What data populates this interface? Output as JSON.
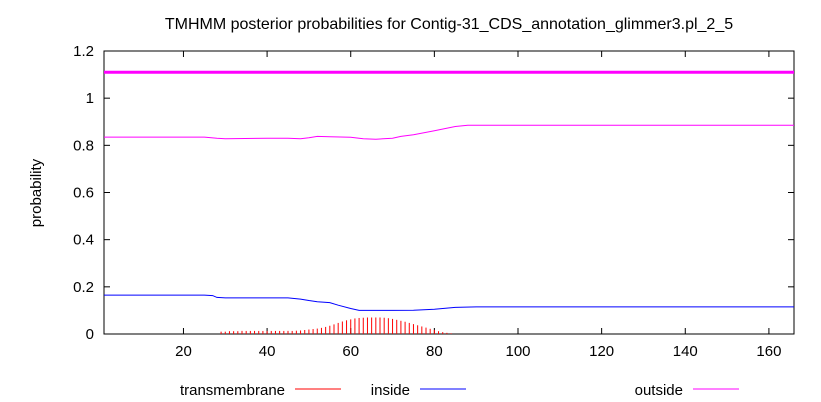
{
  "chart_data": {
    "type": "line",
    "title": "TMHMM posterior probabilities for Contig-31_CDS_annotation_glimmer3.pl_2_5",
    "ylabel": "probability",
    "xlabel": "",
    "xlim": [
      1,
      166
    ],
    "ylim": [
      0,
      1.2
    ],
    "x_ticks": [
      20,
      40,
      60,
      80,
      100,
      120,
      140,
      160
    ],
    "y_ticks": [
      0,
      0.2,
      0.4,
      0.6,
      0.8,
      1,
      1.2
    ],
    "y_tick_labels": [
      "0",
      "0.2",
      "0.4",
      "0.6",
      "0.8",
      "1",
      "1.2"
    ],
    "grid": false,
    "legend_position": "bottom",
    "reference_line": {
      "y": 1.11,
      "color": "#ff00ff"
    },
    "series": [
      {
        "name": "transmembrane",
        "color": "#ff0000",
        "style": "impulses",
        "x": [
          29,
          30,
          31,
          32,
          33,
          34,
          35,
          36,
          37,
          38,
          39,
          40,
          41,
          42,
          43,
          44,
          45,
          46,
          47,
          48,
          49,
          50,
          51,
          52,
          53,
          54,
          55,
          56,
          57,
          58,
          59,
          60,
          61,
          62,
          63,
          64,
          65,
          66,
          67,
          68,
          69,
          70,
          71,
          72,
          73,
          74,
          75,
          76,
          77,
          78,
          79,
          80,
          81,
          82,
          83,
          84
        ],
        "y": [
          0.01,
          0.01,
          0.012,
          0.012,
          0.012,
          0.013,
          0.013,
          0.013,
          0.013,
          0.013,
          0.013,
          0.013,
          0.013,
          0.013,
          0.013,
          0.013,
          0.013,
          0.013,
          0.014,
          0.015,
          0.017,
          0.019,
          0.021,
          0.023,
          0.026,
          0.03,
          0.035,
          0.041,
          0.047,
          0.053,
          0.058,
          0.062,
          0.066,
          0.068,
          0.069,
          0.07,
          0.07,
          0.07,
          0.07,
          0.069,
          0.067,
          0.064,
          0.06,
          0.056,
          0.052,
          0.047,
          0.042,
          0.037,
          0.032,
          0.027,
          0.022,
          0.017,
          0.012,
          0.008,
          0.005,
          0.003
        ]
      },
      {
        "name": "inside",
        "color": "#0000ff",
        "style": "line",
        "x": [
          1,
          20,
          25,
          27,
          28,
          30,
          40,
          45,
          48,
          50,
          52,
          55,
          57,
          60,
          62,
          65,
          70,
          75,
          80,
          85,
          90,
          100,
          166
        ],
        "y": [
          0.165,
          0.165,
          0.165,
          0.163,
          0.155,
          0.153,
          0.153,
          0.153,
          0.148,
          0.142,
          0.137,
          0.133,
          0.122,
          0.108,
          0.1,
          0.1,
          0.1,
          0.101,
          0.105,
          0.113,
          0.115,
          0.115,
          0.115
        ]
      },
      {
        "name": "outside",
        "color": "#ff00ff",
        "style": "line",
        "x": [
          1,
          20,
          25,
          28,
          30,
          40,
          45,
          48,
          50,
          52,
          55,
          60,
          63,
          66,
          70,
          72,
          75,
          80,
          85,
          88,
          95,
          100,
          166
        ],
        "y": [
          0.835,
          0.835,
          0.835,
          0.83,
          0.828,
          0.83,
          0.83,
          0.828,
          0.832,
          0.838,
          0.836,
          0.834,
          0.828,
          0.826,
          0.83,
          0.838,
          0.845,
          0.862,
          0.88,
          0.885,
          0.885,
          0.885,
          0.885
        ]
      }
    ]
  }
}
